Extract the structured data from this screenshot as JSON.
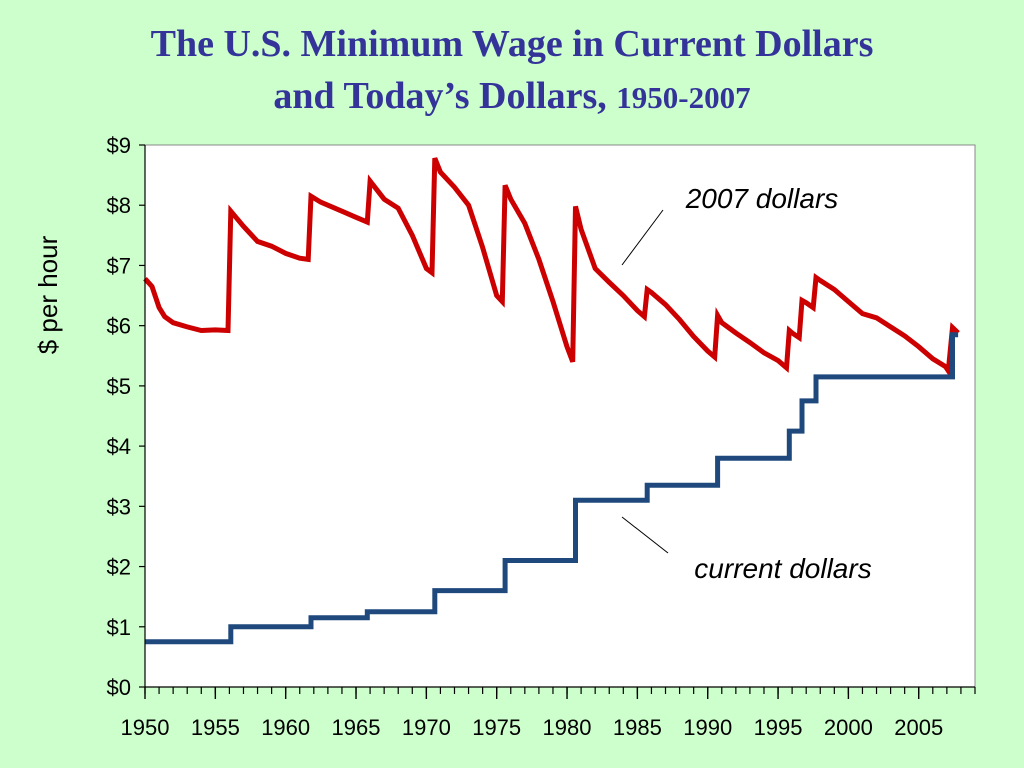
{
  "slide": {
    "title_line1": "The U.S. Minimum Wage in Current Dollars",
    "title_line2_main": "and Today’s Dollars,",
    "title_line2_years": "1950-2007",
    "background": "#ccffcc",
    "title_color": "#333399"
  },
  "chart_data": {
    "type": "line",
    "title": "The U.S. Minimum Wage in Current Dollars and Today’s Dollars, 1950-2007",
    "ylabel": "$ per hour",
    "xlabel": "",
    "xlim": [
      1950,
      2009
    ],
    "ylim": [
      0,
      9
    ],
    "x_ticks": [
      1950,
      1955,
      1960,
      1965,
      1970,
      1975,
      1980,
      1985,
      1990,
      1995,
      2000,
      2005
    ],
    "x_tick_labels": [
      "1950",
      "1955",
      "1960",
      "1965",
      "1970",
      "1975",
      "1980",
      "1985",
      "1990",
      "1995",
      "2000",
      "2005"
    ],
    "y_ticks": [
      0,
      1,
      2,
      3,
      4,
      5,
      6,
      7,
      8,
      9
    ],
    "y_tick_labels": [
      "$0",
      "$1",
      "$2",
      "$3",
      "$4",
      "$5",
      "$6",
      "$7",
      "$8",
      "$9"
    ],
    "grid": false,
    "legend": "none (direct labels)",
    "annotations": [
      {
        "text": "2007 dollars",
        "series": "2007 dollars"
      },
      {
        "text": "current dollars",
        "series": "current dollars"
      }
    ],
    "series": [
      {
        "name": "2007 dollars",
        "color": "#cc0000",
        "points": [
          [
            1950.0,
            6.78
          ],
          [
            1950.5,
            6.65
          ],
          [
            1951.0,
            6.3
          ],
          [
            1951.4,
            6.15
          ],
          [
            1952.0,
            6.05
          ],
          [
            1953.0,
            5.98
          ],
          [
            1954.0,
            5.92
          ],
          [
            1955.0,
            5.93
          ],
          [
            1955.9,
            5.92
          ],
          [
            1956.1,
            7.9
          ],
          [
            1957.0,
            7.65
          ],
          [
            1958.0,
            7.4
          ],
          [
            1959.0,
            7.32
          ],
          [
            1960.0,
            7.2
          ],
          [
            1961.0,
            7.12
          ],
          [
            1961.6,
            7.1
          ],
          [
            1961.8,
            8.15
          ],
          [
            1962.5,
            8.05
          ],
          [
            1963.0,
            8.0
          ],
          [
            1964.0,
            7.9
          ],
          [
            1965.0,
            7.8
          ],
          [
            1965.8,
            7.72
          ],
          [
            1966.0,
            8.4
          ],
          [
            1967.0,
            8.1
          ],
          [
            1968.0,
            7.95
          ],
          [
            1969.0,
            7.5
          ],
          [
            1970.0,
            6.95
          ],
          [
            1970.4,
            6.88
          ],
          [
            1970.6,
            8.78
          ],
          [
            1971.0,
            8.55
          ],
          [
            1972.0,
            8.3
          ],
          [
            1973.0,
            8.0
          ],
          [
            1974.0,
            7.3
          ],
          [
            1975.0,
            6.5
          ],
          [
            1975.4,
            6.4
          ],
          [
            1975.6,
            8.33
          ],
          [
            1976.0,
            8.1
          ],
          [
            1977.0,
            7.7
          ],
          [
            1978.0,
            7.1
          ],
          [
            1979.0,
            6.4
          ],
          [
            1980.0,
            5.65
          ],
          [
            1980.4,
            5.4
          ],
          [
            1980.6,
            7.98
          ],
          [
            1981.0,
            7.6
          ],
          [
            1982.0,
            6.95
          ],
          [
            1983.0,
            6.72
          ],
          [
            1984.0,
            6.5
          ],
          [
            1985.0,
            6.25
          ],
          [
            1985.5,
            6.15
          ],
          [
            1985.7,
            6.6
          ],
          [
            1986.0,
            6.55
          ],
          [
            1987.0,
            6.35
          ],
          [
            1988.0,
            6.1
          ],
          [
            1989.0,
            5.82
          ],
          [
            1990.0,
            5.58
          ],
          [
            1990.5,
            5.48
          ],
          [
            1990.7,
            6.17
          ],
          [
            1991.0,
            6.05
          ],
          [
            1992.0,
            5.88
          ],
          [
            1993.0,
            5.72
          ],
          [
            1994.0,
            5.55
          ],
          [
            1995.0,
            5.42
          ],
          [
            1995.6,
            5.3
          ],
          [
            1995.8,
            5.92
          ],
          [
            1996.0,
            5.88
          ],
          [
            1996.5,
            5.8
          ],
          [
            1996.7,
            6.42
          ],
          [
            1997.0,
            6.38
          ],
          [
            1997.5,
            6.3
          ],
          [
            1997.7,
            6.8
          ],
          [
            1998.0,
            6.75
          ],
          [
            1999.0,
            6.6
          ],
          [
            2000.0,
            6.4
          ],
          [
            2001.0,
            6.2
          ],
          [
            2002.0,
            6.13
          ],
          [
            2003.0,
            5.98
          ],
          [
            2004.0,
            5.83
          ],
          [
            2005.0,
            5.65
          ],
          [
            2006.0,
            5.45
          ],
          [
            2006.9,
            5.32
          ],
          [
            2007.1,
            5.25
          ],
          [
            2007.4,
            5.97
          ],
          [
            2007.8,
            5.88
          ]
        ]
      },
      {
        "name": "current dollars",
        "color": "#1f497d",
        "points": [
          [
            1950.0,
            0.75
          ],
          [
            1956.1,
            0.75
          ],
          [
            1956.1,
            1.0
          ],
          [
            1961.8,
            1.0
          ],
          [
            1961.8,
            1.15
          ],
          [
            1965.8,
            1.15
          ],
          [
            1965.8,
            1.25
          ],
          [
            1970.6,
            1.25
          ],
          [
            1970.6,
            1.6
          ],
          [
            1975.6,
            1.6
          ],
          [
            1975.6,
            2.1
          ],
          [
            1980.6,
            2.1
          ],
          [
            1980.6,
            3.1
          ],
          [
            1985.7,
            3.1
          ],
          [
            1985.7,
            3.35
          ],
          [
            1990.7,
            3.35
          ],
          [
            1990.7,
            3.8
          ],
          [
            1995.8,
            3.8
          ],
          [
            1995.8,
            4.25
          ],
          [
            1996.7,
            4.25
          ],
          [
            1996.7,
            4.75
          ],
          [
            1997.7,
            4.75
          ],
          [
            1997.7,
            5.15
          ],
          [
            2007.4,
            5.15
          ],
          [
            2007.4,
            5.85
          ],
          [
            2007.8,
            5.85
          ]
        ]
      }
    ]
  }
}
